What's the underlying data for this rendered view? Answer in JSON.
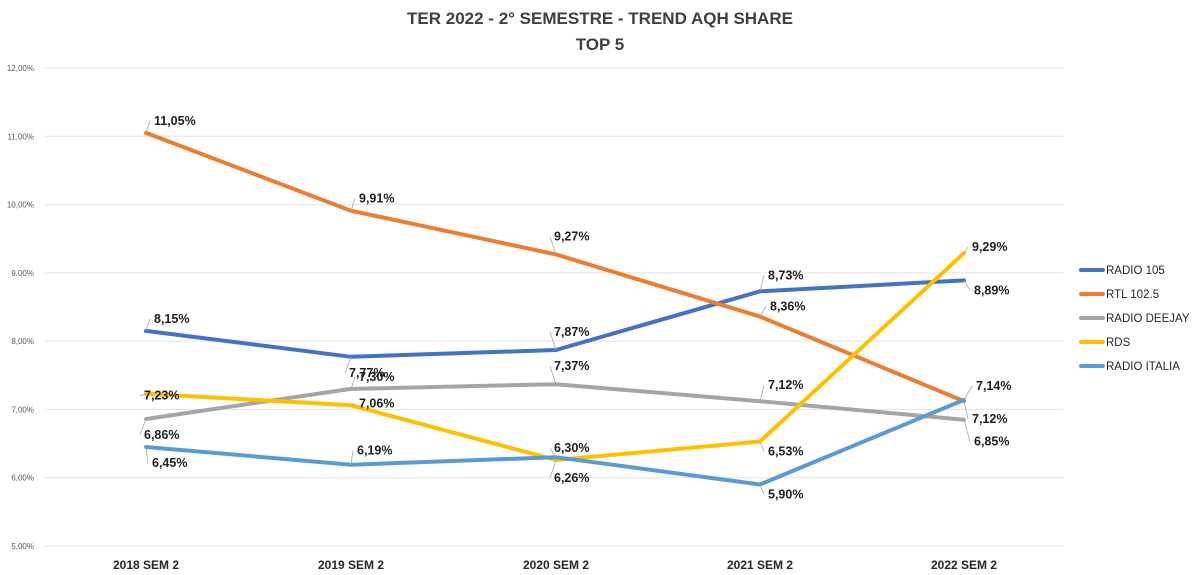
{
  "chart_data": {
    "type": "line",
    "title": "TER 2022 - 2° SEMESTRE - TREND AQH SHARE",
    "subtitle": "TOP 5",
    "xlabel": "",
    "ylabel": "",
    "categories": [
      "2018 SEM 2",
      "2019 SEM 2",
      "2020 SEM 2",
      "2021 SEM 2",
      "2022 SEM 2"
    ],
    "ylim": [
      5,
      12
    ],
    "yticks": [
      5,
      6,
      7,
      8,
      9,
      10,
      11,
      12
    ],
    "ytick_labels": [
      "5,00%",
      "6,00%",
      "7,00%",
      "8,00%",
      "9,00%",
      "10,00%",
      "11,00%",
      "12,00%"
    ],
    "grid": true,
    "legend_position": "right",
    "series": [
      {
        "name": "RADIO 105",
        "color": "#4472C4",
        "values": [
          8.15,
          7.77,
          7.87,
          8.73,
          8.89
        ],
        "labels": [
          "8,15%",
          "7,77%",
          "7,87%",
          "8,73%",
          "8,89%"
        ]
      },
      {
        "name": "RTL 102.5",
        "color": "#ED7D31",
        "values": [
          11.05,
          9.91,
          9.27,
          8.36,
          7.12
        ],
        "labels": [
          "11,05%",
          "9,91%",
          "9,27%",
          "8,36%",
          "7,12%"
        ]
      },
      {
        "name": "RADIO DEEJAY",
        "color": "#A5A5A5",
        "values": [
          6.86,
          7.3,
          7.37,
          7.12,
          6.85
        ],
        "labels": [
          "6,86%",
          "7,30%",
          "7,37%",
          "7,12%",
          "6,85%"
        ]
      },
      {
        "name": "RDS",
        "color": "#FFC000",
        "values": [
          7.23,
          7.06,
          6.26,
          6.53,
          9.29
        ],
        "labels": [
          "7,23%",
          "7,06%",
          "6,26%",
          "6,53%",
          "9,29%"
        ]
      },
      {
        "name": "RADIO ITALIA",
        "color": "#5B9BD5",
        "values": [
          6.45,
          6.19,
          6.3,
          5.9,
          7.14
        ],
        "labels": [
          "6,45%",
          "6,19%",
          "6,30%",
          "5,90%",
          "7,14%"
        ]
      }
    ]
  }
}
